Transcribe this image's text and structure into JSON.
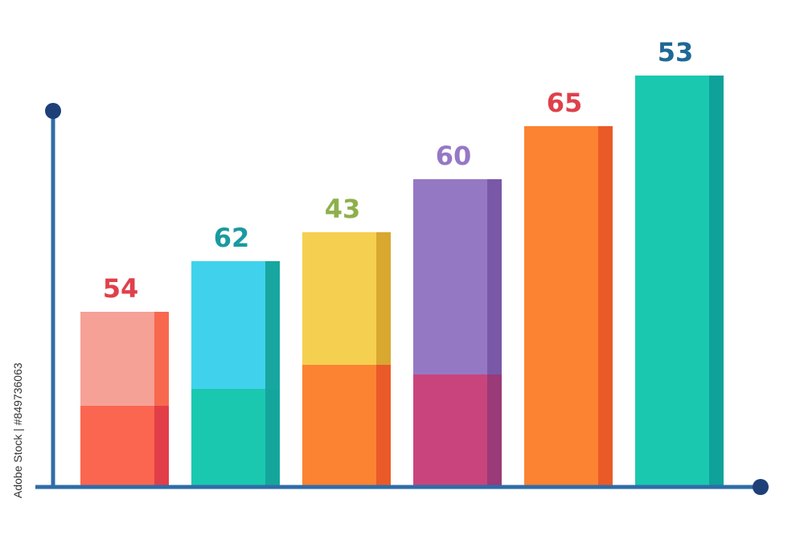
{
  "chart_data": {
    "type": "bar",
    "categories": [
      "",
      "",
      "",
      "",
      "",
      ""
    ],
    "values": [
      54,
      62,
      43,
      60,
      65,
      53
    ],
    "bar_levels": [
      0.72,
      0.93,
      1.05,
      1.27,
      1.49,
      1.7
    ],
    "split_levels": [
      0.33,
      0.4,
      0.5,
      0.46
    ],
    "title": "",
    "xlabel": "",
    "ylabel": "",
    "grid": false,
    "legend": "none",
    "label_colors": [
      "#e0404b",
      "#1a9aa0",
      "#8db04a",
      "#9678c4",
      "#e0404b",
      "#1f6896"
    ],
    "top_colors": [
      "#f6a196",
      "#40d2ec",
      "#f5d050",
      "#9578c4",
      "#fc8332",
      "#1ac8b0"
    ],
    "top_side_colors": [
      "#f8684f",
      "#17a6a0",
      "#d8a830",
      "#7a58a8",
      "#ea5a28",
      "#0ea29a"
    ],
    "bottom_colors": [
      "#fb6650",
      "#1ac8b0",
      "#fb8332",
      "#c9447c"
    ],
    "bottom_side_colors": [
      "#e23e48",
      "#14a69c",
      "#ea5a28",
      "#9a3a78"
    ],
    "axis_color": "#2f6ca8",
    "axis_dot_color": "#1e4078"
  },
  "side_text": "Adobe Stock | #849736063"
}
